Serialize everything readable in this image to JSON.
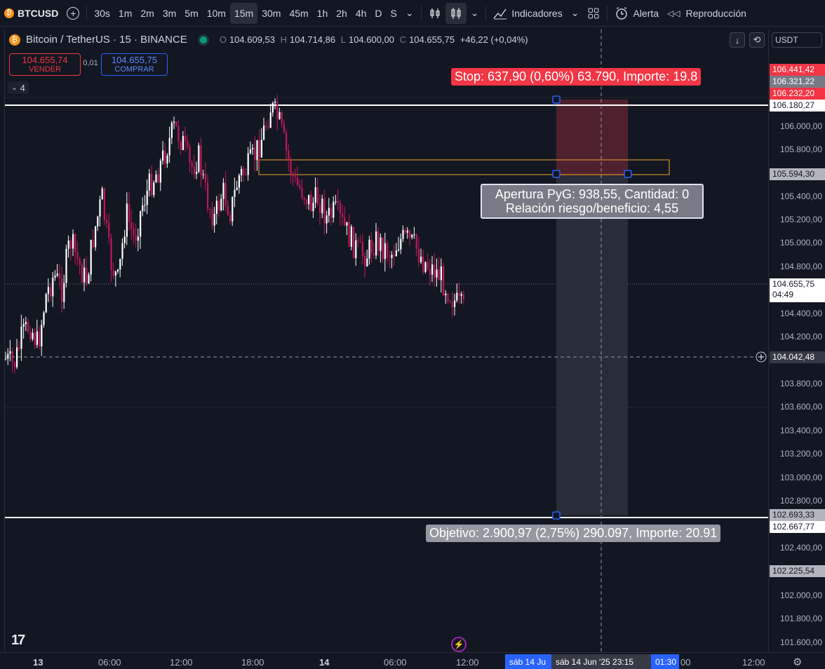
{
  "toolbar": {
    "symbol": "BTCUSD",
    "intervals": [
      "30s",
      "1m",
      "2m",
      "3m",
      "5m",
      "10m",
      "15m",
      "30m",
      "45m",
      "1h",
      "2h",
      "4h",
      "D",
      "S"
    ],
    "active_interval": "15m",
    "indicators_label": "Indicadores",
    "alert_label": "Alerta",
    "replay_label": "Reproducción"
  },
  "legend": {
    "title": "Bitcoin / TetherUS · 15 · BINANCE",
    "open_label": "O",
    "open": "104.609,53",
    "high_label": "H",
    "high": "104.714,86",
    "low_label": "L",
    "low": "104.600,00",
    "close_label": "C",
    "close": "104.655,75",
    "change": "+46,22 (+0,04%)"
  },
  "trade": {
    "sell_price": "104.655,74",
    "sell_label": "VENDER",
    "spread": "0,01",
    "buy_price": "104.655,75",
    "buy_label": "COMPRAR",
    "collapse_count": "4"
  },
  "position": {
    "stop_label": "Stop: 637,90 (0,60%) 63.790, Importe: 19.8",
    "pyg_line1": "Apertura PyG: 938,55, Cantidad: 0",
    "pyg_line2": "Relación riesgo/beneficio: 4,55",
    "target_label": "Objetivo: 2.900,97 (2,75%) 290.097, Importe: 20.91"
  },
  "price_axis": {
    "currency": "USDT",
    "ticks": [
      "106.000,00",
      "105.800,00",
      "105.400,00",
      "105.200,00",
      "105.000,00",
      "104.800,00",
      "104.400,00",
      "104.200,00",
      "103.800,00",
      "103.600,00",
      "103.400,00",
      "103.200,00",
      "103.000,00",
      "102.800,00",
      "102.400,00",
      "102.000,00",
      "101.800,00",
      "101.600,00"
    ],
    "badge_top_red": "106.441,42",
    "badge_stop_grey": "106.321,22",
    "badge_stop_red": "106.232,20",
    "badge_line_high": "106.180,27",
    "badge_entry": "105.594,30",
    "badge_current": "104.655,75",
    "badge_countdown": "04:49",
    "badge_crosshair": "104.042,48",
    "badge_target_grey": "102.693,33",
    "badge_line_low": "102.667,77",
    "badge_lower": "102.225,54"
  },
  "time_axis": {
    "ticks": [
      "13",
      "06:00",
      "12:00",
      "18:00",
      "14",
      "06:00",
      "12:00",
      "00",
      "12:00"
    ],
    "range_start": "sáb 14 Ju",
    "crosshair_time": "sáb 14 Jun '25   23:15",
    "range_end": "01:30"
  },
  "colors": {
    "background": "#131722",
    "up_candle": "#ffffff",
    "down_candle": "#c2185b",
    "stop": "#f23645",
    "accent_blue": "#2962ff"
  }
}
